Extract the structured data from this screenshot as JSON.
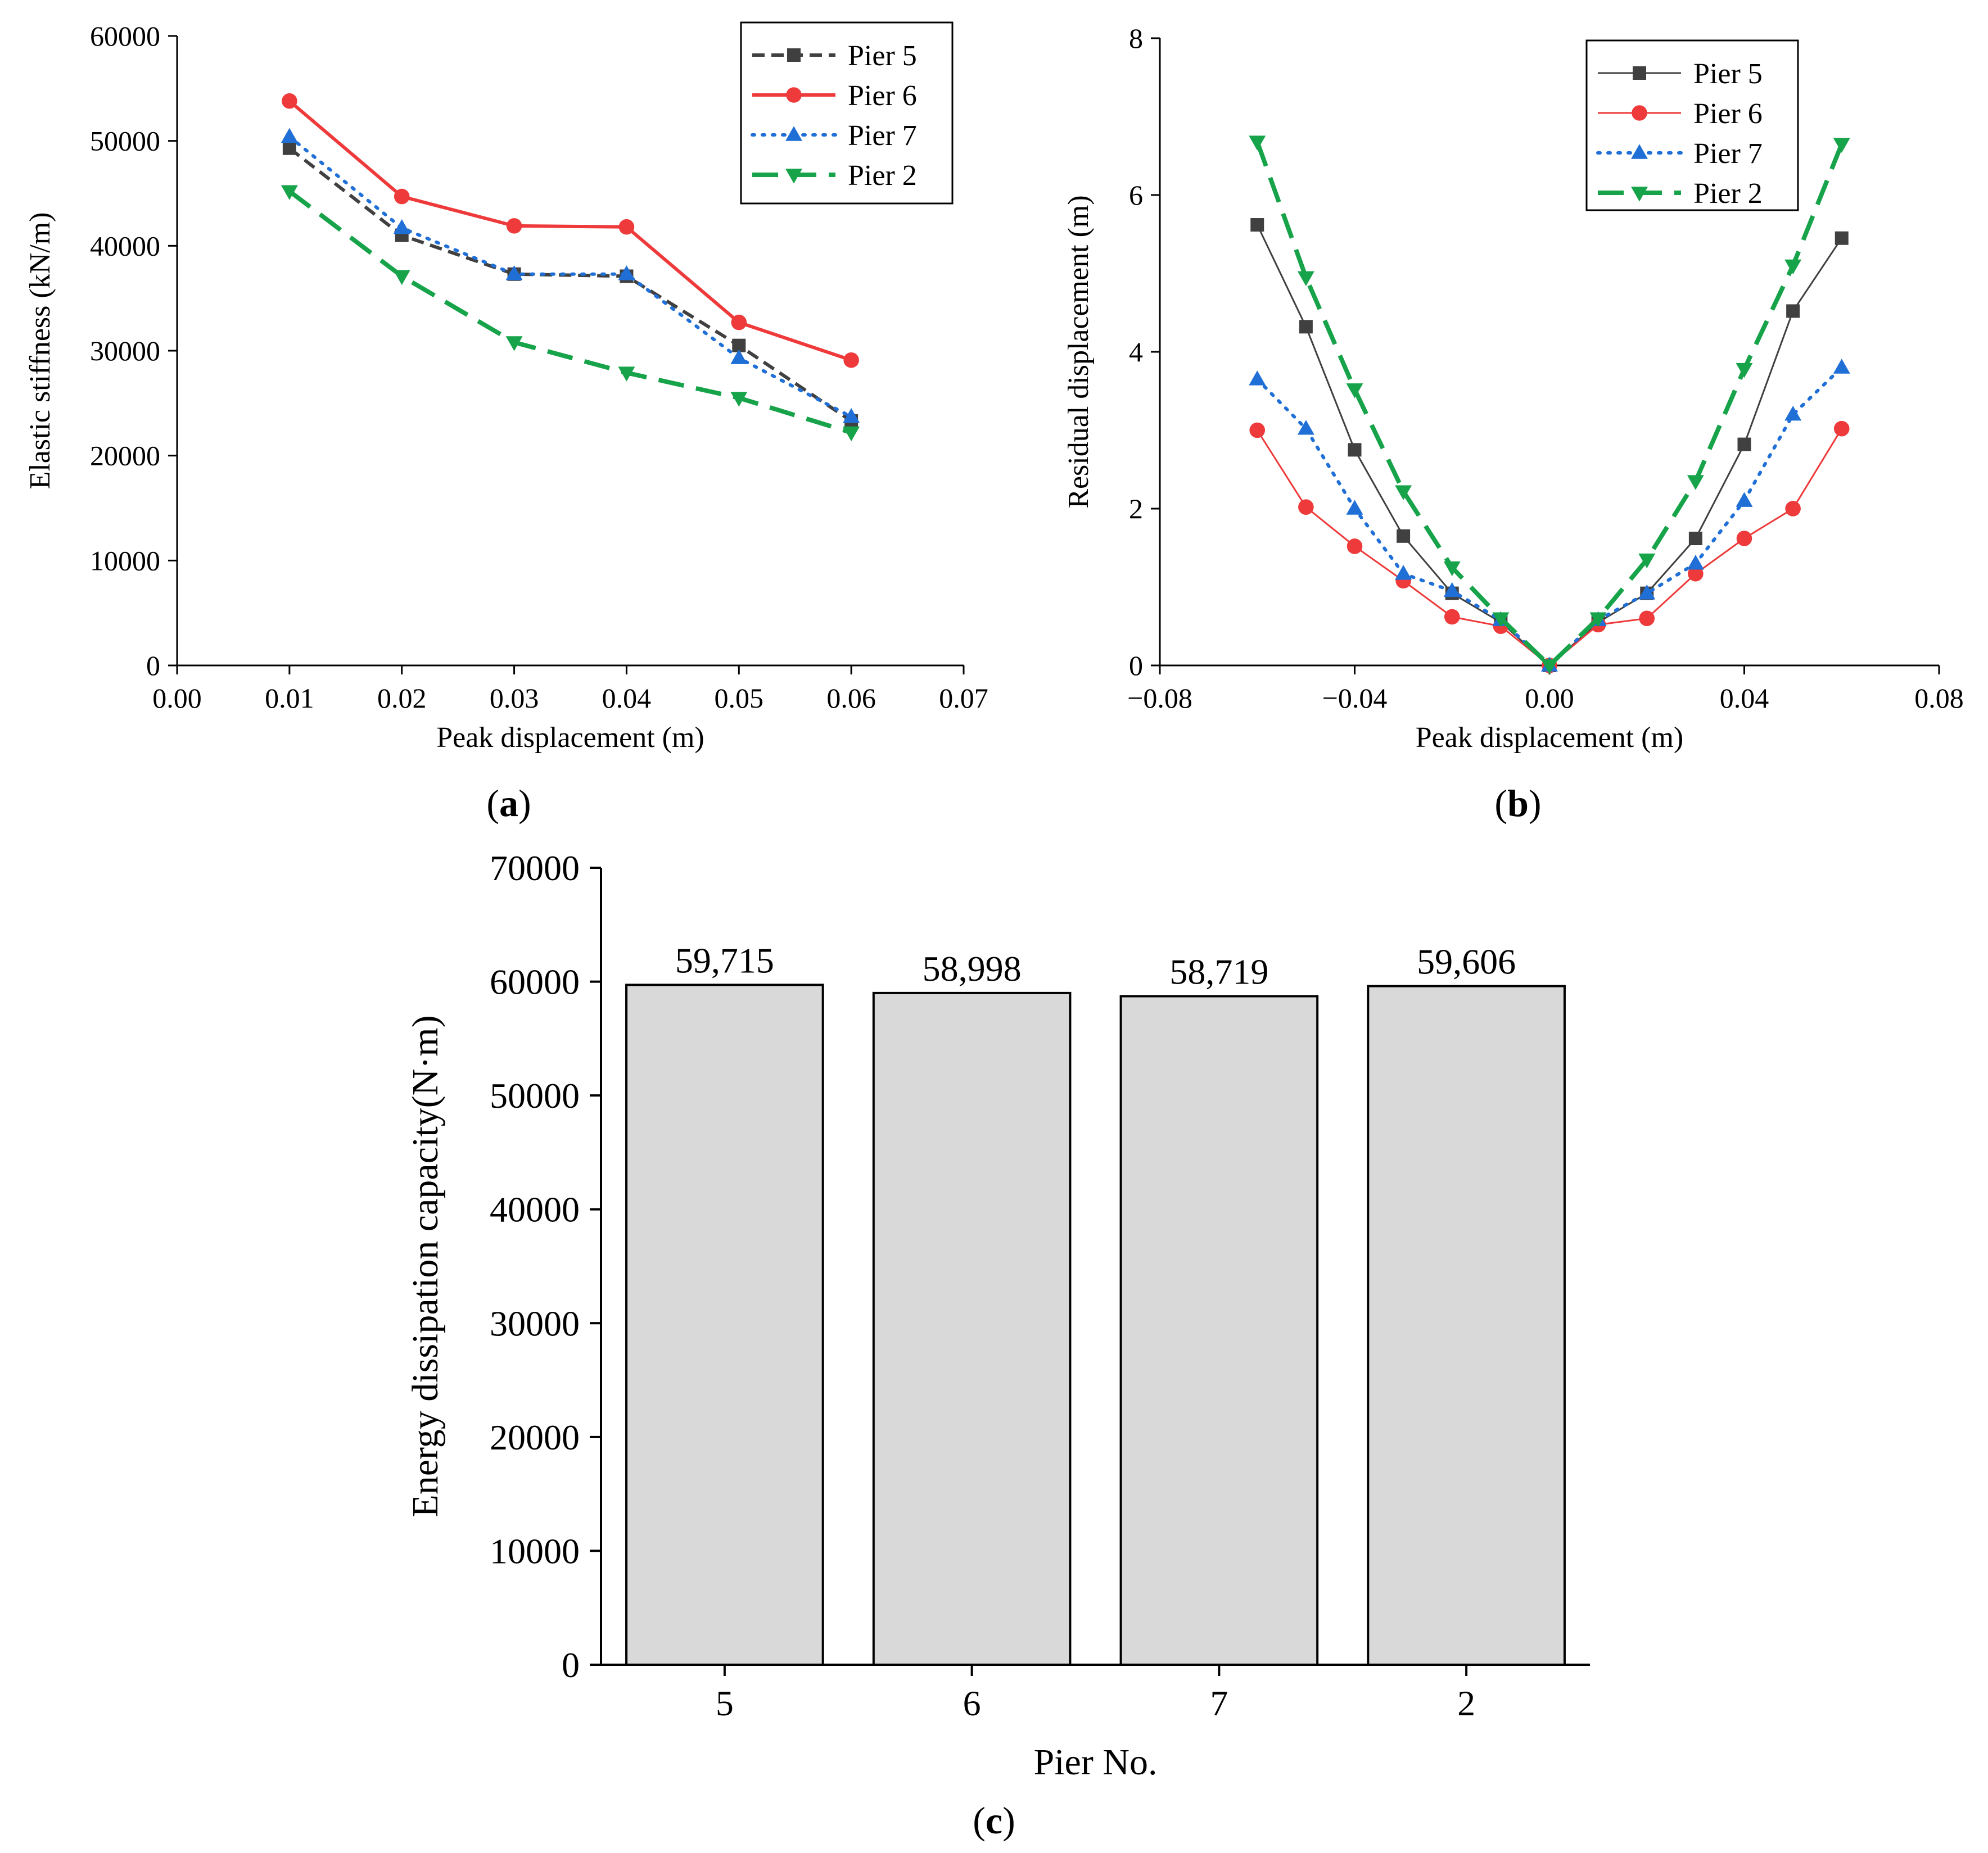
{
  "chart_data": [
    {
      "id": "a",
      "type": "line",
      "panel_label": "a",
      "xlabel": "Peak displacement (m)",
      "ylabel": "Elastic stiffness (kN/m)",
      "xlim": [
        0,
        0.07
      ],
      "ylim": [
        0,
        60000
      ],
      "xticks": [
        "0.00",
        "0.01",
        "0.02",
        "0.03",
        "0.04",
        "0.05",
        "0.06",
        "0.07"
      ],
      "yticks": [
        "0",
        "10000",
        "20000",
        "30000",
        "40000",
        "50000",
        "60000"
      ],
      "legend_position": "top-right",
      "series": [
        {
          "name": "Pier 5",
          "color": "#404040",
          "dash": "dashed",
          "marker": "square",
          "x": [
            0.01,
            0.02,
            0.03,
            0.04,
            0.05,
            0.06
          ],
          "y": [
            49300,
            41000,
            37300,
            37100,
            30500,
            23300
          ]
        },
        {
          "name": "Pier 6",
          "color": "#ee3a3a",
          "dash": "solid",
          "marker": "circle",
          "x": [
            0.01,
            0.02,
            0.03,
            0.04,
            0.05,
            0.06
          ],
          "y": [
            53800,
            44700,
            41900,
            41800,
            32700,
            29100
          ]
        },
        {
          "name": "Pier 7",
          "color": "#1f6fd6",
          "dash": "dotted",
          "marker": "triangle-up",
          "x": [
            0.01,
            0.02,
            0.03,
            0.04,
            0.05,
            0.06
          ],
          "y": [
            50400,
            41700,
            37300,
            37300,
            29300,
            23700
          ]
        },
        {
          "name": "Pier 2",
          "color": "#17a34a",
          "dash": "longdash",
          "marker": "triangle-down",
          "x": [
            0.01,
            0.02,
            0.03,
            0.04,
            0.05,
            0.06
          ],
          "y": [
            45200,
            37100,
            30800,
            27900,
            25500,
            22200
          ]
        }
      ]
    },
    {
      "id": "b",
      "type": "line",
      "panel_label": "b",
      "xlabel": "Peak displacement (m)",
      "ylabel": "Residual displacement (m)",
      "xlim": [
        -0.08,
        0.08
      ],
      "ylim": [
        0,
        8
      ],
      "xticks": [
        "-0.08",
        "-0.04",
        "0.00",
        "0.04",
        "0.08"
      ],
      "yticks": [
        "0",
        "2",
        "4",
        "6",
        "8"
      ],
      "legend_position": "top-right",
      "series": [
        {
          "name": "Pier 5",
          "color": "#404040",
          "dash": "solid-thin",
          "marker": "square",
          "x": [
            -0.06,
            -0.05,
            -0.04,
            -0.03,
            -0.02,
            -0.01,
            0,
            0.01,
            0.02,
            0.03,
            0.04,
            0.05,
            0.06
          ],
          "y": [
            5.62,
            4.32,
            2.75,
            1.65,
            0.92,
            0.55,
            0,
            0.55,
            0.92,
            1.62,
            2.82,
            4.52,
            5.45
          ]
        },
        {
          "name": "Pier 6",
          "color": "#ee3a3a",
          "dash": "solid-thin",
          "marker": "circle",
          "x": [
            -0.06,
            -0.05,
            -0.04,
            -0.03,
            -0.02,
            -0.01,
            0,
            0.01,
            0.02,
            0.03,
            0.04,
            0.05,
            0.06
          ],
          "y": [
            3.0,
            2.02,
            1.52,
            1.08,
            0.62,
            0.5,
            0,
            0.52,
            0.6,
            1.17,
            1.62,
            2.0,
            3.02
          ]
        },
        {
          "name": "Pier 7",
          "color": "#1f6fd6",
          "dash": "dotted",
          "marker": "triangle-up",
          "x": [
            -0.06,
            -0.05,
            -0.04,
            -0.03,
            -0.02,
            -0.01,
            0,
            0.01,
            0.02,
            0.03,
            0.04,
            0.05,
            0.06
          ],
          "y": [
            3.65,
            3.02,
            2.0,
            1.17,
            0.95,
            0.58,
            0,
            0.58,
            0.92,
            1.3,
            2.1,
            3.2,
            3.8
          ]
        },
        {
          "name": "Pier 2",
          "color": "#17a34a",
          "dash": "longdash",
          "marker": "triangle-down",
          "x": [
            -0.06,
            -0.05,
            -0.04,
            -0.03,
            -0.02,
            -0.01,
            0,
            0.01,
            0.02,
            0.03,
            0.04,
            0.05,
            0.06
          ],
          "y": [
            6.68,
            4.95,
            3.52,
            2.22,
            1.25,
            0.6,
            0,
            0.6,
            1.35,
            2.35,
            3.78,
            5.1,
            6.65
          ]
        }
      ]
    },
    {
      "id": "c",
      "type": "bar",
      "panel_label": "c",
      "xlabel": "Pier No.",
      "ylabel": "Energy dissipation capacity(N·m)",
      "ylim": [
        0,
        70000
      ],
      "yticks": [
        "0",
        "10000",
        "20000",
        "30000",
        "40000",
        "50000",
        "60000",
        "70000"
      ],
      "categories": [
        "5",
        "6",
        "7",
        "2"
      ],
      "values": [
        59715,
        58998,
        58719,
        59606
      ],
      "value_labels": [
        "59,715",
        "58,998",
        "58,719",
        "59,606"
      ],
      "bar_color": "#d9d9d9"
    }
  ]
}
